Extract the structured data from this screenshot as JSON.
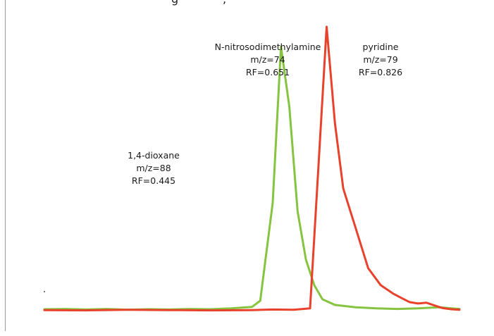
{
  "header_fragment": "g",
  "header_fragment_2": ",",
  "chart_data": {
    "type": "line",
    "title": "",
    "xlabel": "",
    "ylabel": "",
    "grid": false,
    "legend": "none",
    "xlim": [
      0,
      100
    ],
    "ylim": [
      0,
      100
    ],
    "annotations": [
      {
        "compound": "1,4-dioxane",
        "mz": "m/z=88",
        "rf": "RF=0.445"
      },
      {
        "compound": "N-nitrosodimethylamine",
        "mz": "m/z=74",
        "rf": "RF=0.651"
      },
      {
        "compound": "pyridine",
        "mz": "m/z=79",
        "rf": "RF=0.826"
      }
    ],
    "series": [
      {
        "color": "#86c440",
        "x": [
          0,
          5,
          10,
          15,
          20,
          25,
          30,
          35,
          40,
          45,
          50,
          52,
          55,
          57,
          59,
          61,
          63,
          65,
          67,
          70,
          75,
          80,
          85,
          90,
          95,
          100
        ],
        "y": [
          0.5,
          0.6,
          0.4,
          0.6,
          0.3,
          0.5,
          0.4,
          0.6,
          0.5,
          0.8,
          1.3,
          3.5,
          38,
          93,
          72,
          35,
          18,
          9,
          4,
          2,
          1.2,
          0.8,
          0.6,
          0.8,
          1.2,
          0.6
        ]
      },
      {
        "color": "#e8412c",
        "x": [
          0,
          10,
          20,
          30,
          40,
          50,
          55,
          60,
          64,
          66,
          68,
          70,
          72,
          75,
          78,
          81,
          84,
          86,
          88,
          90,
          92,
          94,
          96,
          98,
          100
        ],
        "y": [
          0.2,
          0.1,
          0.3,
          0.2,
          0.1,
          0.2,
          0.4,
          0.3,
          0.8,
          50,
          100,
          66,
          43,
          29,
          15,
          9,
          6,
          4.5,
          3,
          2.5,
          2.8,
          1.8,
          0.9,
          0.5,
          0.3
        ]
      }
    ]
  }
}
